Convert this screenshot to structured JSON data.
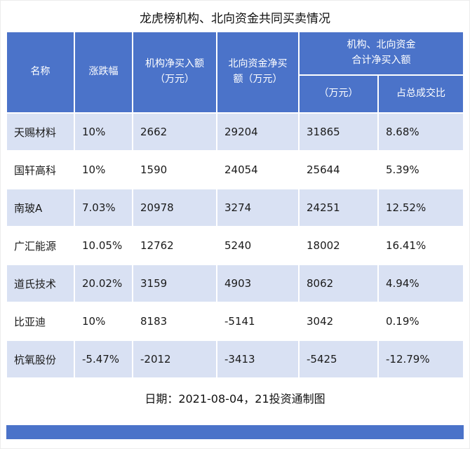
{
  "title": "龙虎榜机构、北向资金共同买卖情况",
  "chart_data": {
    "type": "table",
    "title": "龙虎榜机构、北向资金共同买卖情况",
    "headers": {
      "name": "名称",
      "change": "涨跌幅",
      "inst_net": "机构净买入额\n（万元）",
      "north_net": "北向资金净买\n额（万元）",
      "combined_group": "机构、北向资金\n合计净买入额",
      "combined_amount": "（万元）",
      "combined_ratio": "占总成交比"
    },
    "rows": [
      {
        "name": "天赐材料",
        "change": "10%",
        "inst": "2662",
        "north": "29204",
        "total": "31865",
        "ratio": "8.68%"
      },
      {
        "name": "国轩高科",
        "change": "10%",
        "inst": "1590",
        "north": "24054",
        "total": "25644",
        "ratio": "5.39%"
      },
      {
        "name": "南玻A",
        "change": "7.03%",
        "inst": "20978",
        "north": "3274",
        "total": "24251",
        "ratio": "12.52%"
      },
      {
        "name": "广汇能源",
        "change": "10.05%",
        "inst": "12762",
        "north": "5240",
        "total": "18002",
        "ratio": "16.41%"
      },
      {
        "name": "道氏技术",
        "change": "20.02%",
        "inst": "3159",
        "north": "4903",
        "total": "8062",
        "ratio": "4.94%"
      },
      {
        "name": "比亚迪",
        "change": "10%",
        "inst": "8183",
        "north": "-5141",
        "total": "3042",
        "ratio": "0.19%"
      },
      {
        "name": "杭氧股份",
        "change": "-5.47%",
        "inst": "-2012",
        "north": "-3413",
        "total": "-5425",
        "ratio": "-12.79%"
      }
    ],
    "footer": "日期：2021-08-04，21投资通制图"
  },
  "colors": {
    "header_bg": "#4B73C9",
    "row_alt_bg": "#D9E1F3",
    "row_bg": "#FFFFFF",
    "header_text": "#FFFFFF",
    "body_text": "#1A1A1A"
  }
}
